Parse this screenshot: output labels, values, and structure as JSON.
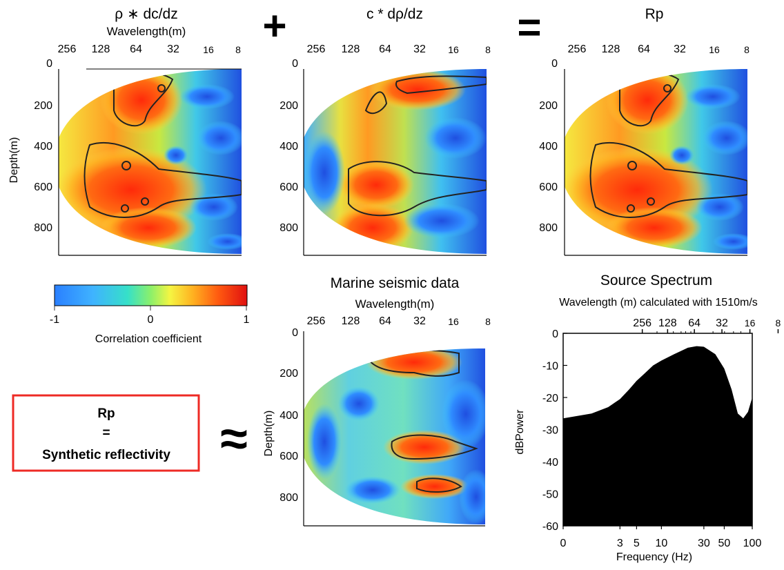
{
  "panels": {
    "rho_dcdz": {
      "title": "ρ ∗ dc/dz",
      "xlabel": "Wavelength(m)",
      "ylabel": "Depth(m)",
      "wavelength_ticks": [
        "256",
        "128",
        "64",
        "32",
        "16",
        "8"
      ],
      "depth_ticks": [
        "0",
        "200",
        "400",
        "600",
        "800"
      ]
    },
    "c_drhodz": {
      "title": "c * dρ/dz",
      "wavelength_ticks": [
        "256",
        "128",
        "64",
        "32",
        "16",
        "8"
      ],
      "depth_ticks": [
        "0",
        "200",
        "400",
        "600",
        "800"
      ]
    },
    "rp": {
      "title": "Rp",
      "wavelength_ticks": [
        "256",
        "128",
        "64",
        "32",
        "16",
        "8"
      ],
      "depth_ticks": [
        "0",
        "200",
        "400",
        "600",
        "800"
      ]
    },
    "marine": {
      "title": "Marine seismic data",
      "xlabel": "Wavelength(m)",
      "ylabel": "Depth(m)",
      "wavelength_ticks": [
        "256",
        "128",
        "64",
        "32",
        "16",
        "8"
      ],
      "depth_ticks": [
        "0",
        "200",
        "400",
        "600",
        "800"
      ]
    }
  },
  "operators": {
    "plus": "+",
    "equals": "=",
    "approx": "≈"
  },
  "colorbar": {
    "label": "Correlation coefficient",
    "ticks": [
      "-1",
      "0",
      "1"
    ],
    "colors": [
      "#2a7fff",
      "#3fb3ff",
      "#36e0c8",
      "#8cf06a",
      "#f5f542",
      "#ffb020",
      "#ff5a10",
      "#e01010"
    ]
  },
  "synthetic_box": {
    "line1": "Rp",
    "line2": "=",
    "line3": "Synthetic reflectivity",
    "border_color": "#ee2a24"
  },
  "spectrum": {
    "title": "Source Spectrum",
    "subtitle": "Wavelength (m) calculated with 1510m/s",
    "xlabel": "Frequency (Hz)",
    "ylabel": "dBPower",
    "top_ticks": [
      "256",
      "128",
      "64",
      "32",
      "16",
      "8"
    ],
    "x_ticks": [
      "0",
      "3",
      "5",
      "10",
      "30",
      "50",
      "100"
    ],
    "y_ticks": [
      "0",
      "-10",
      "-20",
      "-30",
      "-40",
      "-50",
      "-60"
    ]
  },
  "chart_data": {
    "type": "area",
    "title": "Source Spectrum",
    "subtitle": "Wavelength (m) calculated with 1510m/s",
    "xlabel": "Frequency (Hz)",
    "ylabel": "dBPower",
    "xscale": "log",
    "xlim": [
      0,
      100
    ],
    "ylim": [
      -60,
      0
    ],
    "x": [
      0,
      1,
      2,
      3,
      4,
      5,
      6,
      8,
      10,
      14,
      20,
      25,
      30,
      40,
      50,
      60,
      70,
      80,
      90,
      100
    ],
    "series": [
      {
        "values": [
          -26.5,
          -25,
          -23,
          -20.5,
          -17.5,
          -14.8,
          -13,
          -10,
          -8.5,
          -6.5,
          -4.5,
          -4,
          -4.2,
          -6.5,
          -11,
          -17.5,
          -25,
          -26.5,
          -24.5,
          -20
        ]
      }
    ]
  }
}
